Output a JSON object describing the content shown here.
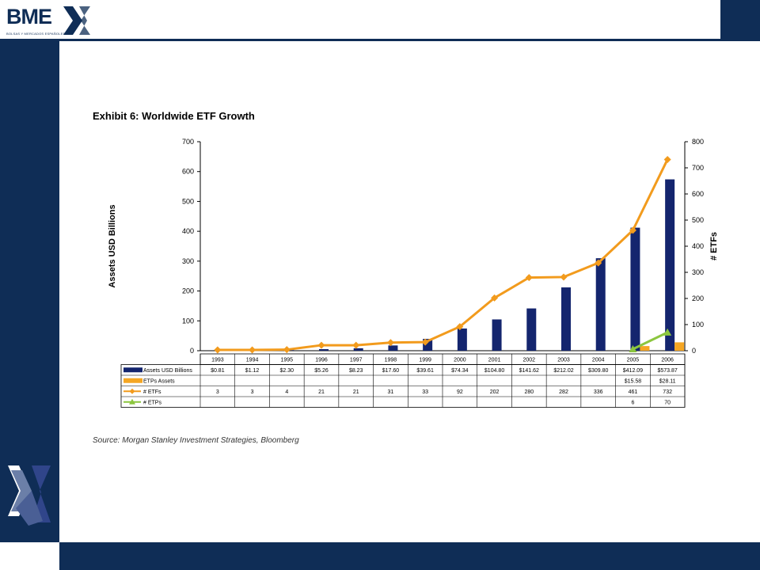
{
  "header": {
    "logo_text": "BME",
    "logo_subtext": "BOLSAS Y MERCADOS ESPAÑOLES"
  },
  "exhibit_title": "Exhibit 6: Worldwide ETF Growth",
  "source": "Source: Morgan Stanley Investment Strategies, Bloomberg",
  "colors": {
    "navy": "#0f2d56",
    "assets_bar": "#14256e",
    "etps_bar": "#f5a623",
    "etfs_line": "#f29b1d",
    "etps_line": "#8cc63f"
  },
  "chart_data": {
    "type": "bar",
    "title": "",
    "ylabel": "Assets USD Billions",
    "y2label": "# ETFs",
    "ylim": [
      0,
      700
    ],
    "y2lim": [
      0,
      800
    ],
    "yticks": [
      "0",
      "100",
      "200",
      "300",
      "400",
      "500",
      "600",
      "700"
    ],
    "y2ticks": [
      "0",
      "100",
      "200",
      "300",
      "400",
      "500",
      "600",
      "700",
      "800"
    ],
    "categories": [
      "1993",
      "1994",
      "1995",
      "1996",
      "1997",
      "1998",
      "1999",
      "2000",
      "2001",
      "2002",
      "2003",
      "2004",
      "2005",
      "2006"
    ],
    "series": [
      {
        "name": "Assets USD Billions",
        "kind": "bar",
        "axis": "left",
        "values": [
          0.81,
          1.12,
          2.3,
          5.26,
          8.23,
          17.6,
          39.61,
          74.34,
          104.8,
          141.62,
          212.02,
          309.8,
          412.09,
          573.87
        ],
        "labels": [
          "$0.81",
          "$1.12",
          "$2.30",
          "$5.26",
          "$8.23",
          "$17.60",
          "$39.61",
          "$74.34",
          "$104.80",
          "$141.62",
          "$212.02",
          "$309.80",
          "$412.09",
          "$573.87"
        ]
      },
      {
        "name": "ETPs Assets",
        "kind": "bar",
        "axis": "left",
        "values": [
          null,
          null,
          null,
          null,
          null,
          null,
          null,
          null,
          null,
          null,
          null,
          null,
          15.58,
          28.11
        ],
        "labels": [
          "",
          "",
          "",
          "",
          "",
          "",
          "",
          "",
          "",
          "",
          "",
          "",
          "$15.58",
          "$28.11"
        ]
      },
      {
        "name": "# ETFs",
        "kind": "line",
        "axis": "right",
        "values": [
          3,
          3,
          4,
          21,
          21,
          31,
          33,
          92,
          202,
          280,
          282,
          336,
          461,
          732
        ],
        "labels": [
          "3",
          "3",
          "4",
          "21",
          "21",
          "31",
          "33",
          "92",
          "202",
          "280",
          "282",
          "336",
          "461",
          "732"
        ]
      },
      {
        "name": "# ETPs",
        "kind": "line",
        "axis": "right",
        "values": [
          null,
          null,
          null,
          null,
          null,
          null,
          null,
          null,
          null,
          null,
          null,
          null,
          6,
          70
        ],
        "labels": [
          "",
          "",
          "",
          "",
          "",
          "",
          "",
          "",
          "",
          "",
          "",
          "",
          "6",
          "70"
        ]
      }
    ],
    "legend": "table-below",
    "grid": false
  }
}
